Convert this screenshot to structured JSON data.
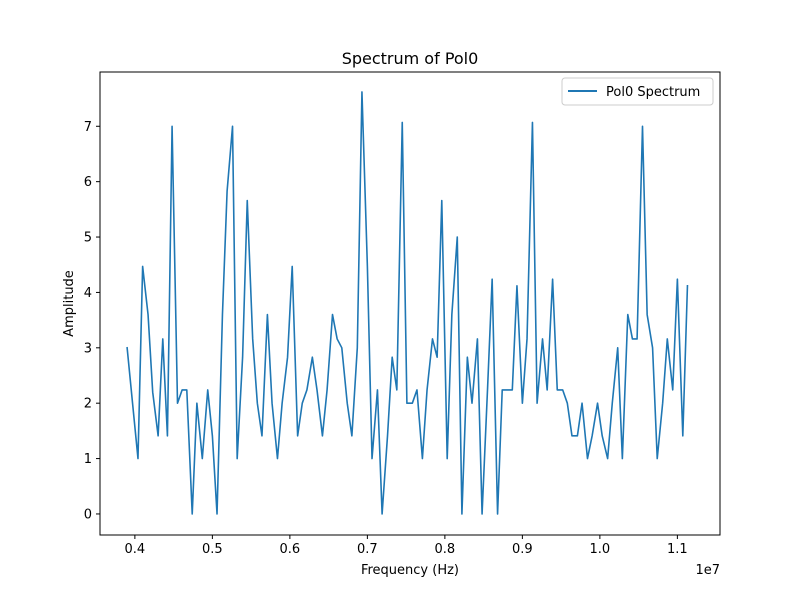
{
  "chart_data": {
    "type": "line",
    "title": "Spectrum of Pol0",
    "xlabel": "Frequency (Hz)",
    "ylabel": "Amplitude",
    "x_offset_label": "1e7",
    "xlim": [
      0.355,
      1.155
    ],
    "ylim": [
      -0.38,
      7.98
    ],
    "xticks": [
      0.4,
      0.5,
      0.6,
      0.7,
      0.8,
      0.9,
      1.0,
      1.1
    ],
    "xtick_labels": [
      "0.4",
      "0.5",
      "0.6",
      "0.7",
      "0.8",
      "0.9",
      "1.0",
      "1.1"
    ],
    "yticks": [
      0,
      1,
      2,
      3,
      4,
      5,
      6,
      7
    ],
    "ytick_labels": [
      "0",
      "1",
      "2",
      "3",
      "4",
      "5",
      "6",
      "7"
    ],
    "grid": false,
    "legend_position": "upper right",
    "series": [
      {
        "name": "Pol0 Spectrum",
        "color": "#1f77b4",
        "x": [
          0.39,
          0.397,
          0.404,
          0.41,
          0.417,
          0.423,
          0.43,
          0.436,
          0.442,
          0.448,
          0.455,
          0.461,
          0.467,
          0.474,
          0.48,
          0.487,
          0.494,
          0.5,
          0.506,
          0.513,
          0.519,
          0.526,
          0.532,
          0.539,
          0.545,
          0.552,
          0.558,
          0.564,
          0.571,
          0.577,
          0.584,
          0.59,
          0.597,
          0.603,
          0.61,
          0.616,
          0.622,
          0.629,
          0.635,
          0.642,
          0.648,
          0.655,
          0.661,
          0.667,
          0.674,
          0.68,
          0.687,
          0.693,
          0.7,
          0.706,
          0.713,
          0.719,
          0.726,
          0.732,
          0.738,
          0.745,
          0.751,
          0.758,
          0.764,
          0.771,
          0.777,
          0.784,
          0.79,
          0.796,
          0.803,
          0.809,
          0.816,
          0.822,
          0.829,
          0.835,
          0.842,
          0.848,
          0.855,
          0.861,
          0.868,
          0.874,
          0.88,
          0.887,
          0.893,
          0.9,
          0.906,
          0.913,
          0.919,
          0.926,
          0.932,
          0.939,
          0.945,
          0.952,
          0.958,
          0.964,
          0.971,
          0.977,
          0.984,
          0.99,
          0.997,
          1.003,
          1.01,
          1.016,
          1.023,
          1.029,
          1.036,
          1.042,
          1.048,
          1.055,
          1.061,
          1.068,
          1.074,
          1.081,
          1.087,
          1.094,
          1.1,
          1.107,
          1.113
        ],
        "y": [
          3.0,
          2.0,
          1.0,
          4.47,
          3.6,
          2.2,
          1.41,
          3.16,
          1.41,
          7.0,
          2.0,
          2.24,
          2.24,
          0.0,
          2.0,
          1.0,
          2.24,
          1.41,
          0.0,
          3.6,
          5.83,
          7.0,
          1.0,
          2.83,
          5.66,
          3.16,
          2.0,
          1.41,
          3.6,
          2.0,
          1.0,
          2.0,
          2.83,
          4.47,
          1.41,
          2.0,
          2.24,
          2.83,
          2.24,
          1.41,
          2.24,
          3.6,
          3.16,
          3.0,
          2.0,
          1.41,
          3.0,
          7.62,
          4.47,
          1.0,
          2.24,
          0.0,
          1.41,
          2.83,
          2.24,
          7.07,
          2.0,
          2.0,
          2.24,
          1.0,
          2.24,
          3.16,
          2.83,
          5.66,
          1.0,
          3.6,
          5.0,
          0.0,
          2.83,
          2.0,
          3.16,
          0.0,
          2.24,
          4.24,
          0.0,
          2.24,
          2.24,
          2.24,
          4.12,
          2.0,
          3.16,
          7.07,
          2.0,
          3.16,
          2.24,
          4.24,
          2.24,
          2.24,
          2.0,
          1.41,
          1.41,
          2.0,
          1.0,
          1.41,
          2.0,
          1.41,
          1.0,
          2.0,
          3.0,
          1.0,
          3.6,
          3.16,
          3.16,
          7.0,
          3.6,
          3.0,
          1.0,
          2.0,
          3.16,
          2.24,
          4.24,
          1.41,
          4.12
        ]
      }
    ]
  }
}
